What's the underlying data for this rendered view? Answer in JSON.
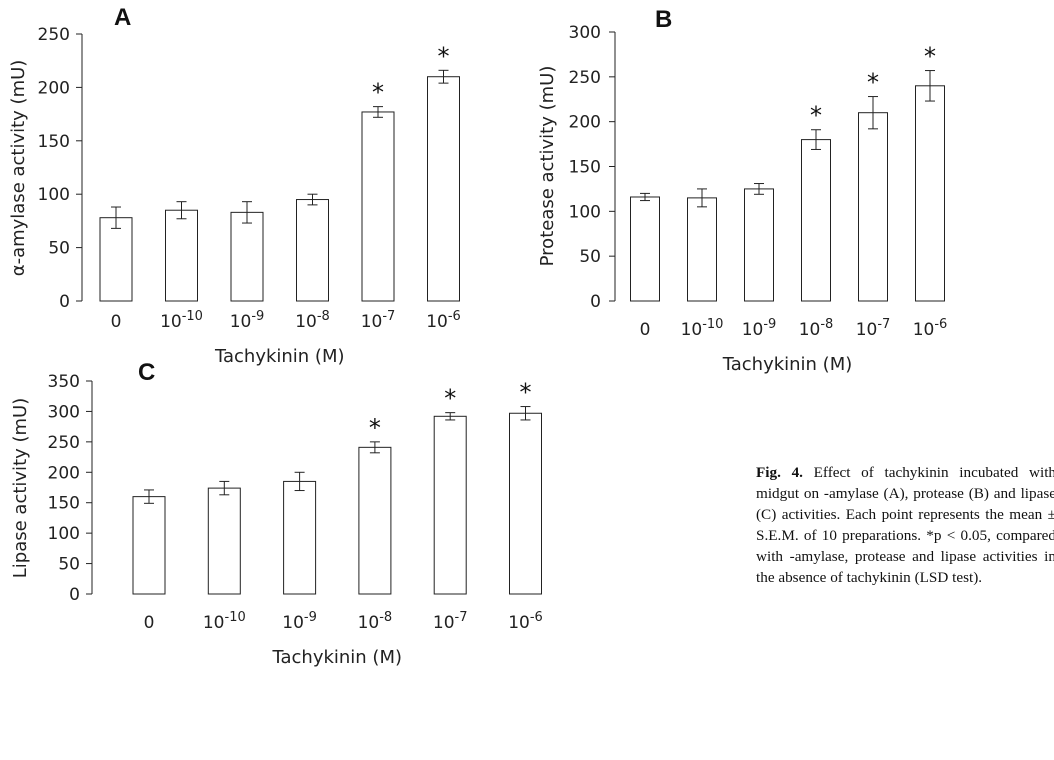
{
  "caption": {
    "label": "Fig. 4.",
    "text": "Effect of tachykinin incubated with midgut on   -amylase (A), protease (B) and lipase (C) activities. Each point represents the mean ± S.E.M. of 10 preparations. *p < 0.05, compared with   -amylase, protease and lipase activities in the absence of tachykinin (LSD test)."
  },
  "chart_data": [
    {
      "type": "bar",
      "panel": "A",
      "ylabel": "α-amylase activity (mU)",
      "xlabel": "Tachykinin (M)",
      "ylim": [
        0,
        250
      ],
      "yticks": [
        "0",
        "50",
        "100",
        "150",
        "200",
        "250"
      ],
      "categories": [
        {
          "base": "0",
          "exp": ""
        },
        {
          "base": "10",
          "exp": "-10"
        },
        {
          "base": "10",
          "exp": "-9"
        },
        {
          "base": "10",
          "exp": "-8"
        },
        {
          "base": "10",
          "exp": "-7"
        },
        {
          "base": "10",
          "exp": "-6"
        }
      ],
      "values": [
        78,
        85,
        83,
        95,
        177,
        210
      ],
      "errors": [
        10,
        8,
        10,
        5,
        5,
        6
      ],
      "significant": [
        false,
        false,
        false,
        false,
        true,
        true
      ],
      "grid": false
    },
    {
      "type": "bar",
      "panel": "B",
      "ylabel": "Protease activity (mU)",
      "xlabel": "Tachykinin (M)",
      "ylim": [
        0,
        300
      ],
      "yticks": [
        "0",
        "50",
        "100",
        "150",
        "200",
        "250",
        "300"
      ],
      "categories": [
        {
          "base": "0",
          "exp": ""
        },
        {
          "base": "10",
          "exp": "-10"
        },
        {
          "base": "10",
          "exp": "-9"
        },
        {
          "base": "10",
          "exp": "-8"
        },
        {
          "base": "10",
          "exp": "-7"
        },
        {
          "base": "10",
          "exp": "-6"
        }
      ],
      "values": [
        116,
        115,
        125,
        180,
        210,
        240
      ],
      "errors": [
        4,
        10,
        6,
        11,
        18,
        17
      ],
      "significant": [
        false,
        false,
        false,
        true,
        true,
        true
      ],
      "grid": false
    },
    {
      "type": "bar",
      "panel": "C",
      "ylabel": "Lipase activity (mU)",
      "xlabel": "Tachykinin (M)",
      "ylim": [
        0,
        350
      ],
      "yticks": [
        "0",
        "50",
        "100",
        "150",
        "200",
        "250",
        "300",
        "350"
      ],
      "categories": [
        {
          "base": "0",
          "exp": ""
        },
        {
          "base": "10",
          "exp": "-10"
        },
        {
          "base": "10",
          "exp": "-9"
        },
        {
          "base": "10",
          "exp": "-8"
        },
        {
          "base": "10",
          "exp": "-7"
        },
        {
          "base": "10",
          "exp": "-6"
        }
      ],
      "values": [
        160,
        174,
        185,
        241,
        292,
        297
      ],
      "errors": [
        11,
        11,
        15,
        9,
        6,
        11
      ],
      "significant": [
        false,
        false,
        false,
        true,
        true,
        true
      ],
      "grid": false
    }
  ]
}
